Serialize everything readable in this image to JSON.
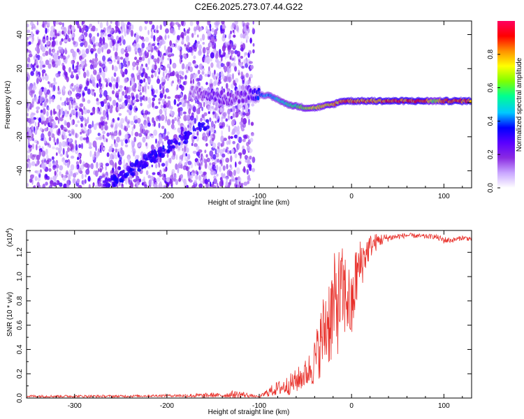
{
  "title": "C2E6.2025.273.07.44.G22",
  "chart_data": [
    {
      "type": "heatmap",
      "ylabel": "Frequency (Hz)",
      "xlabel": "Height of straight line (km)",
      "xlim": [
        -352,
        130
      ],
      "ylim": [
        -50,
        48
      ],
      "x_ticks": [
        -300,
        -200,
        -100,
        0,
        100
      ],
      "x_tick_labels": [
        "-300",
        "-200",
        "-100",
        "0",
        "100"
      ],
      "y_ticks": [
        -40,
        -20,
        0,
        20,
        40
      ],
      "y_tick_labels": [
        "-40",
        "-20",
        "0",
        "20",
        "40"
      ],
      "noise_region_x": [
        -352,
        -106
      ],
      "trace": {
        "x": [
          -170,
          -150,
          -130,
          -110,
          -100,
          -90,
          -80,
          -70,
          -60,
          -50,
          -40,
          -30,
          -20,
          -10,
          0,
          20,
          40,
          60,
          80,
          90,
          100,
          130
        ],
        "freq": [
          6,
          4,
          2,
          5,
          5,
          4,
          2,
          -1,
          -2,
          -3,
          -3,
          -2,
          -1,
          1,
          1,
          1,
          1,
          1,
          1,
          1,
          1,
          1
        ],
        "amplitude": [
          0.15,
          0.25,
          0.2,
          0.25,
          0.4,
          0.45,
          0.5,
          0.55,
          0.6,
          0.65,
          0.7,
          0.75,
          0.8,
          0.85,
          0.85,
          0.85,
          0.9,
          0.9,
          0.9,
          0.6,
          0.9,
          0.9
        ]
      },
      "colorbar": {
        "label": "Normalized spectral amplitude",
        "range": [
          0,
          1
        ],
        "ticks": [
          0,
          0.2,
          0.4,
          0.6,
          0.8
        ],
        "tick_labels": [
          "0.0",
          "0.2",
          "0.4",
          "0.6",
          "0.8"
        ],
        "colors": [
          "#ffffff",
          "#c9a6ff",
          "#8a2be2",
          "#5a00ff",
          "#0000ff",
          "#00c8ff",
          "#00ff90",
          "#80ff00",
          "#ffff00",
          "#ff9000",
          "#ff0000",
          "#ff0060"
        ]
      }
    },
    {
      "type": "line",
      "ylabel": "SNR (10 * v/v)",
      "xlabel": "Height of straight line (km)",
      "y_multiplier": "(x10",
      "y_multiplier_exp": "4",
      "y_multiplier_close": ")",
      "xlim": [
        -352,
        130
      ],
      "ylim": [
        0,
        1.38
      ],
      "x_ticks": [
        -300,
        -200,
        -100,
        0,
        100
      ],
      "x_tick_labels": [
        "-300",
        "-200",
        "-100",
        "0",
        "100"
      ],
      "y_ticks": [
        0,
        0.2,
        0.4,
        0.6,
        0.8,
        1.0,
        1.2
      ],
      "y_tick_labels": [
        "0.0",
        "0.2",
        "0.4",
        "0.6",
        "0.8",
        "1.0",
        "1.2"
      ],
      "color": "#e8302a",
      "series": {
        "name": "SNR",
        "x": [
          -352,
          -300,
          -250,
          -200,
          -160,
          -150,
          -140,
          -130,
          -120,
          -110,
          -100,
          -90,
          -80,
          -70,
          -60,
          -50,
          -45,
          -40,
          -35,
          -30,
          -25,
          -20,
          -15,
          -10,
          -5,
          0,
          5,
          10,
          15,
          20,
          30,
          40,
          60,
          80,
          90,
          100,
          110,
          120,
          130
        ],
        "y": [
          0.015,
          0.015,
          0.015,
          0.02,
          0.02,
          0.025,
          0.02,
          0.03,
          0.03,
          0.02,
          0.01,
          0.05,
          0.08,
          0.1,
          0.14,
          0.2,
          0.24,
          0.3,
          0.42,
          0.55,
          0.65,
          0.72,
          0.8,
          0.85,
          0.85,
          0.7,
          1.0,
          1.1,
          1.18,
          1.25,
          1.3,
          1.32,
          1.34,
          1.33,
          1.33,
          1.3,
          1.3,
          1.32,
          1.31
        ],
        "amp": [
          0.01,
          0.01,
          0.01,
          0.01,
          0.02,
          0.02,
          0.015,
          0.03,
          0.03,
          0.015,
          0.005,
          0.04,
          0.06,
          0.08,
          0.1,
          0.12,
          0.15,
          0.2,
          0.26,
          0.34,
          0.4,
          0.45,
          0.45,
          0.4,
          0.35,
          0.3,
          0.28,
          0.22,
          0.15,
          0.1,
          0.06,
          0.03,
          0.02,
          0.02,
          0.02,
          0.03,
          0.02,
          0.02,
          0.02
        ]
      }
    }
  ]
}
